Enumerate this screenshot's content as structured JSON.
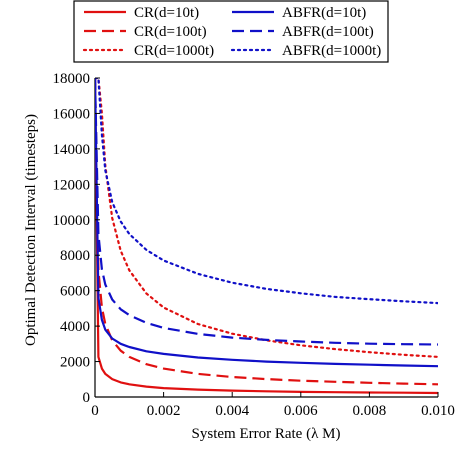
{
  "chart_data": {
    "type": "line",
    "title": "",
    "xlabel": "System Error Rate (λ M)",
    "ylabel": "Optimal Detection Interval (timesteps)",
    "xlim": [
      0,
      0.01
    ],
    "ylim": [
      0,
      18000
    ],
    "x_ticks": [
      0,
      0.002,
      0.004,
      0.006,
      0.008,
      0.01
    ],
    "x_tick_labels": [
      "0",
      "0.002",
      "0.004",
      "0.006",
      "0.008",
      "0.010"
    ],
    "y_ticks": [
      0,
      2000,
      4000,
      6000,
      8000,
      10000,
      12000,
      14000,
      16000,
      18000
    ],
    "y_tick_labels": [
      "0",
      "2000",
      "4000",
      "6000",
      "8000",
      "10000",
      "12000",
      "14000",
      "16000",
      "18000"
    ],
    "grid": false,
    "legend_position": "top",
    "x": [
      0.0,
      0.0001,
      0.0002,
      0.0003,
      0.0005,
      0.00075,
      0.001,
      0.0015,
      0.002,
      0.003,
      0.004,
      0.005,
      0.006,
      0.007,
      0.008,
      0.009,
      0.01
    ],
    "series": [
      {
        "name": "CR(d=10t)",
        "color": "#e01010",
        "dash": "solid",
        "values": [
          18000,
          2260,
          1600,
          1305,
          1010,
          825,
          715,
          585,
          505,
          415,
          360,
          320,
          290,
          270,
          255,
          240,
          225
        ]
      },
      {
        "name": "CR(d=100t)",
        "color": "#e01010",
        "dash": "dashed",
        "values": [
          18000,
          7150,
          5050,
          4120,
          3200,
          2610,
          2260,
          1850,
          1600,
          1305,
          1130,
          1010,
          920,
          855,
          800,
          755,
          715
        ]
      },
      {
        "name": "CR(d=1000t)",
        "color": "#e01010",
        "dash": "dotted",
        "values": [
          18000,
          18000,
          16000,
          13050,
          10100,
          8250,
          7150,
          5840,
          5050,
          4120,
          3570,
          3200,
          2920,
          2700,
          2530,
          2380,
          2260
        ]
      },
      {
        "name": "ABFR(d=10t)",
        "color": "#1010c8",
        "dash": "solid",
        "values": [
          18000,
          5600,
          4350,
          3800,
          3300,
          3000,
          2820,
          2580,
          2430,
          2230,
          2100,
          2000,
          1930,
          1870,
          1820,
          1780,
          1740
        ]
      },
      {
        "name": "ABFR(d=100t)",
        "color": "#1010c8",
        "dash": "dashed",
        "values": [
          18000,
          9200,
          7200,
          6350,
          5500,
          4950,
          4620,
          4180,
          3900,
          3560,
          3350,
          3220,
          3130,
          3060,
          3010,
          2980,
          2960
        ]
      },
      {
        "name": "ABFR(d=1000t)",
        "color": "#1010c8",
        "dash": "dotted",
        "values": [
          18000,
          18000,
          14800,
          12800,
          11000,
          9900,
          9200,
          8300,
          7700,
          6950,
          6450,
          6100,
          5850,
          5650,
          5520,
          5400,
          5300
        ]
      }
    ]
  }
}
